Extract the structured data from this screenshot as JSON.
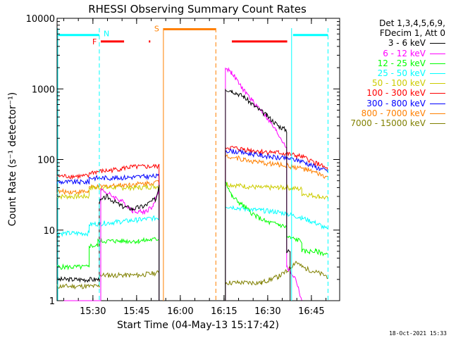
{
  "chart_data": {
    "type": "line",
    "title": "RHESSI Observing Summary Count Rates",
    "xlabel": "Start Time (04-May-13 15:17:42)",
    "ylabel": "Count Rate (s⁻¹ detector⁻¹)",
    "x_unit": "minutes after 15:17:42",
    "xlim": [
      0,
      97
    ],
    "ylim": [
      1,
      10000
    ],
    "yscale": "log",
    "x_ticks": [
      {
        "t": 12.3,
        "label": "15:30"
      },
      {
        "t": 27.3,
        "label": "15:45"
      },
      {
        "t": 42.3,
        "label": "16:00"
      },
      {
        "t": 57.3,
        "label": "16:15"
      },
      {
        "t": 72.3,
        "label": "16:30"
      },
      {
        "t": 87.3,
        "label": "16:45"
      }
    ],
    "y_ticks": [
      {
        "v": 1,
        "label": "1"
      },
      {
        "v": 10,
        "label": "10"
      },
      {
        "v": 100,
        "label": "100"
      },
      {
        "v": 1000,
        "label": "1000"
      },
      {
        "v": 10000,
        "label": "10000"
      }
    ],
    "legend_header": [
      "Det 1,3,4,5,6,9,",
      "FDecim 1, Att 0"
    ],
    "series": [
      {
        "name": "3 - 6 keV",
        "color": "#000000",
        "points": [
          [
            0,
            2
          ],
          [
            14.5,
            2
          ],
          [
            14.5,
            25
          ],
          [
            17,
            30
          ],
          [
            22,
            22
          ],
          [
            26,
            20
          ],
          [
            30,
            22
          ],
          [
            34,
            28
          ],
          [
            35,
            45
          ],
          [
            35,
            1
          ],
          [
            57.8,
            1
          ],
          [
            57.8,
            1000
          ],
          [
            60,
            950
          ],
          [
            64,
            780
          ],
          [
            68,
            560
          ],
          [
            72,
            420
          ],
          [
            76,
            300
          ],
          [
            78.8,
            260
          ],
          [
            78.8,
            5
          ],
          [
            80,
            5
          ],
          [
            80,
            1
          ],
          [
            93,
            1
          ]
        ]
      },
      {
        "name": "6 - 12 keV",
        "color": "#ff00ff",
        "points": [
          [
            0,
            1
          ],
          [
            15,
            1
          ],
          [
            15,
            38
          ],
          [
            18,
            32
          ],
          [
            22,
            26
          ],
          [
            26,
            19
          ],
          [
            30,
            18
          ],
          [
            33,
            22
          ],
          [
            35,
            38
          ],
          [
            35,
            1
          ],
          [
            57.8,
            1
          ],
          [
            57.8,
            2000
          ],
          [
            60,
            1700
          ],
          [
            63,
            1100
          ],
          [
            67,
            680
          ],
          [
            71,
            450
          ],
          [
            75,
            260
          ],
          [
            78.8,
            150
          ],
          [
            78.8,
            3
          ],
          [
            82,
            2
          ],
          [
            84,
            1
          ],
          [
            93,
            1
          ]
        ]
      },
      {
        "name": "12 - 25 keV",
        "color": "#00ff00",
        "points": [
          [
            0,
            3
          ],
          [
            11,
            3
          ],
          [
            11,
            6
          ],
          [
            14,
            6
          ],
          [
            14,
            7
          ],
          [
            20,
            7
          ],
          [
            28,
            7
          ],
          [
            35,
            7.5
          ],
          [
            35,
            1
          ],
          [
            57.8,
            1
          ],
          [
            57.8,
            50
          ],
          [
            60,
            30
          ],
          [
            64,
            22
          ],
          [
            68,
            16
          ],
          [
            72,
            13
          ],
          [
            76,
            12
          ],
          [
            78.8,
            11
          ],
          [
            78.8,
            8
          ],
          [
            84,
            7
          ],
          [
            84,
            5
          ],
          [
            89,
            5
          ],
          [
            93,
            4.5
          ]
        ]
      },
      {
        "name": "25 - 50 keV",
        "color": "#00ffff",
        "points": [
          [
            0,
            9
          ],
          [
            11,
            9
          ],
          [
            11,
            12
          ],
          [
            20,
            13
          ],
          [
            28,
            14
          ],
          [
            35,
            15
          ],
          [
            35,
            1
          ],
          [
            57.8,
            1
          ],
          [
            57.8,
            22
          ],
          [
            64,
            20
          ],
          [
            70,
            19
          ],
          [
            76,
            18
          ],
          [
            78.8,
            17
          ],
          [
            84,
            15
          ],
          [
            90,
            12
          ],
          [
            93,
            10
          ]
        ]
      },
      {
        "name": "50 - 100 keV",
        "color": "#cccc00",
        "points": [
          [
            0,
            30
          ],
          [
            11,
            30
          ],
          [
            11,
            40
          ],
          [
            20,
            40
          ],
          [
            28,
            40
          ],
          [
            35,
            42
          ],
          [
            35,
            1
          ],
          [
            57.8,
            1
          ],
          [
            57.8,
            45
          ],
          [
            64,
            42
          ],
          [
            70,
            40
          ],
          [
            76,
            40
          ],
          [
            78.8,
            40
          ],
          [
            84,
            38
          ],
          [
            84,
            33
          ],
          [
            90,
            30
          ],
          [
            93,
            28
          ]
        ]
      },
      {
        "name": "100 - 300 keV",
        "color": "#ff0000",
        "points": [
          [
            0,
            58
          ],
          [
            11,
            58
          ],
          [
            11,
            65
          ],
          [
            18,
            70
          ],
          [
            25,
            78
          ],
          [
            35,
            80
          ],
          [
            35,
            1
          ],
          [
            57.8,
            1
          ],
          [
            57.8,
            150
          ],
          [
            64,
            140
          ],
          [
            70,
            130
          ],
          [
            76,
            125
          ],
          [
            78.8,
            120
          ],
          [
            84,
            110
          ],
          [
            90,
            85
          ],
          [
            93,
            72
          ]
        ]
      },
      {
        "name": "300 - 800 keV",
        "color": "#0000ff",
        "points": [
          [
            0,
            48
          ],
          [
            11,
            48
          ],
          [
            11,
            55
          ],
          [
            20,
            55
          ],
          [
            28,
            57
          ],
          [
            35,
            58
          ],
          [
            35,
            1
          ],
          [
            57.8,
            1
          ],
          [
            57.8,
            135
          ],
          [
            64,
            125
          ],
          [
            70,
            115
          ],
          [
            76,
            105
          ],
          [
            78.8,
            105
          ],
          [
            84,
            95
          ],
          [
            90,
            75
          ],
          [
            93,
            68
          ]
        ]
      },
      {
        "name": "800 - 7000 keV",
        "color": "#ff8000",
        "points": [
          [
            0,
            35
          ],
          [
            11,
            35
          ],
          [
            11,
            40
          ],
          [
            20,
            43
          ],
          [
            28,
            45
          ],
          [
            35,
            48
          ],
          [
            35,
            1
          ],
          [
            57.8,
            1
          ],
          [
            57.8,
            115
          ],
          [
            64,
            100
          ],
          [
            70,
            90
          ],
          [
            76,
            85
          ],
          [
            78.8,
            82
          ],
          [
            84,
            75
          ],
          [
            90,
            62
          ],
          [
            93,
            55
          ]
        ]
      },
      {
        "name": "7000 - 15000 keV",
        "color": "#808000",
        "points": [
          [
            0,
            1.6
          ],
          [
            14.5,
            1.6
          ],
          [
            14.5,
            2.3
          ],
          [
            20,
            2.3
          ],
          [
            28,
            2.3
          ],
          [
            35,
            2.5
          ],
          [
            35,
            1
          ],
          [
            57.8,
            1
          ],
          [
            57.8,
            1.8
          ],
          [
            64,
            1.8
          ],
          [
            70,
            1.8
          ],
          [
            76,
            2.2
          ],
          [
            78.8,
            2.6
          ],
          [
            82,
            3.6
          ],
          [
            84,
            3
          ],
          [
            93,
            2.2
          ]
        ]
      }
    ],
    "annotations": {
      "saa_flag": {
        "label": "S",
        "color": "#ff8000",
        "start": 36.5,
        "end": 54.5,
        "level": 7000
      },
      "night_flags": {
        "label": "N",
        "color": "#00ffff",
        "segments": [
          [
            0,
            14.5,
            5800
          ],
          [
            80.5,
            93,
            5800
          ]
        ],
        "markers": [
          {
            "t": 0,
            "style": "solid"
          },
          {
            "t": 14.5,
            "style": "dashed"
          },
          {
            "t": 80.5,
            "style": "solid"
          },
          {
            "t": 93,
            "style": "dashed"
          }
        ]
      },
      "flare_flags": {
        "label": "F",
        "color": "#ff0000",
        "segments": [
          [
            15,
            23,
            4700
          ],
          [
            31.5,
            32,
            4700
          ],
          [
            60,
            79,
            4700
          ]
        ]
      },
      "attenuator_markers": [
        {
          "t": 36.5,
          "style": "solid"
        },
        {
          "t": 54.5,
          "style": "dashed"
        }
      ]
    },
    "footer_date": "18-Oct-2021 15:33"
  }
}
